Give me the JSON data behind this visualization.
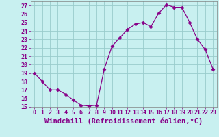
{
  "x": [
    0,
    1,
    2,
    3,
    4,
    5,
    6,
    7,
    8,
    9,
    10,
    11,
    12,
    13,
    14,
    15,
    16,
    17,
    18,
    19,
    20,
    21,
    22,
    23
  ],
  "y": [
    19,
    18,
    17,
    17,
    16.5,
    15.8,
    15.2,
    15.1,
    15.2,
    19.5,
    22.2,
    23.2,
    24.2,
    24.8,
    25,
    24.5,
    26.1,
    27.1,
    26.8,
    26.8,
    25.0,
    23.0,
    21.8,
    19.5
  ],
  "line_color": "#880088",
  "marker": "D",
  "marker_size": 2.5,
  "marker_color": "#880088",
  "bg_color": "#c8f0f0",
  "grid_color": "#99cccc",
  "xlabel": "Windchill (Refroidissement éolien,°C)",
  "xlabel_color": "#880088",
  "tick_color": "#880088",
  "ylim": [
    15,
    27.5
  ],
  "xlim": [
    -0.5,
    23.5
  ],
  "yticks": [
    15,
    16,
    17,
    18,
    19,
    20,
    21,
    22,
    23,
    24,
    25,
    26,
    27
  ],
  "xticks": [
    0,
    1,
    2,
    3,
    4,
    5,
    6,
    7,
    8,
    9,
    10,
    11,
    12,
    13,
    14,
    15,
    16,
    17,
    18,
    19,
    20,
    21,
    22,
    23
  ],
  "xtick_labels": [
    "0",
    "1",
    "2",
    "3",
    "4",
    "5",
    "6",
    "7",
    "8",
    "9",
    "10",
    "11",
    "12",
    "13",
    "14",
    "15",
    "16",
    "17",
    "18",
    "19",
    "20",
    "21",
    "22",
    "23"
  ],
  "ytick_labels": [
    "15",
    "16",
    "17",
    "18",
    "19",
    "20",
    "21",
    "22",
    "23",
    "24",
    "25",
    "26",
    "27"
  ],
  "font_size": 6,
  "xlabel_font_size": 7.5
}
